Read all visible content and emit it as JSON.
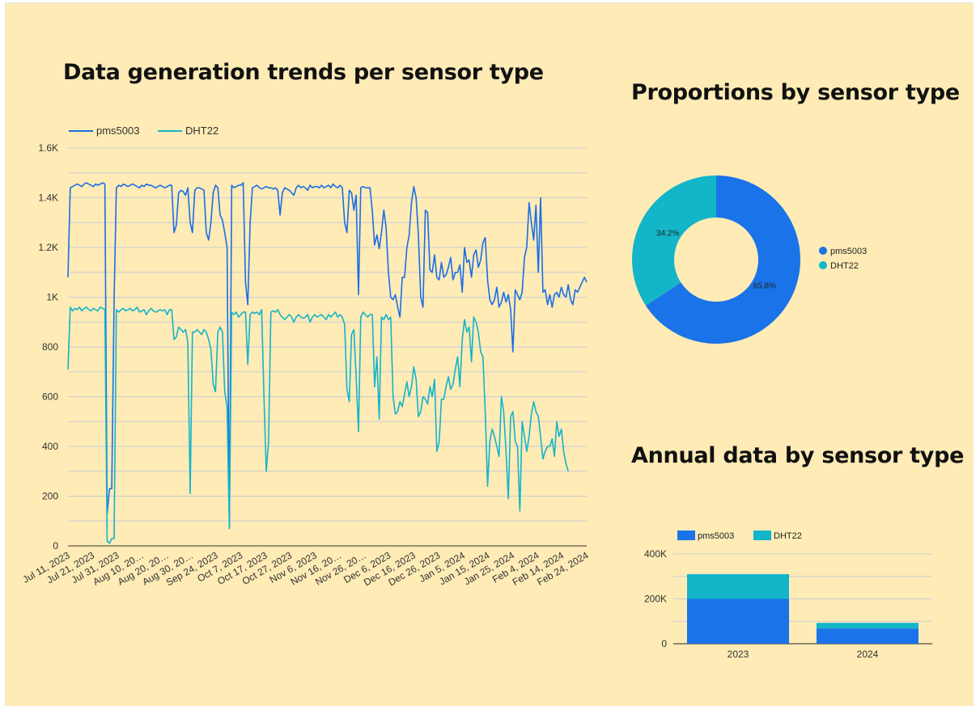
{
  "charts": {
    "trend": {
      "title": "Data generation trends per sensor type"
    },
    "proportion": {
      "title": "Proportions by sensor type"
    },
    "annual": {
      "title": "Annual data by sensor type"
    }
  },
  "chart_data": [
    {
      "type": "line",
      "title": "Data generation trends per sensor type",
      "legend_position": "top-left",
      "grid": true,
      "ylim": [
        0,
        1600
      ],
      "y_ticks": [
        {
          "value": 0,
          "label": "0"
        },
        {
          "value": 200,
          "label": "200"
        },
        {
          "value": 400,
          "label": "400"
        },
        {
          "value": 600,
          "label": "600"
        },
        {
          "value": 800,
          "label": "800"
        },
        {
          "value": 1000,
          "label": "1K"
        },
        {
          "value": 1200,
          "label": "1.2K"
        },
        {
          "value": 1400,
          "label": "1.4K"
        },
        {
          "value": 1600,
          "label": "1.6K"
        }
      ],
      "x_ticks": [
        {
          "index": 0,
          "label": "Jul 11, 2023"
        },
        {
          "index": 10,
          "label": "Jul 21, 2023"
        },
        {
          "index": 20,
          "label": "Jul 31, 2023"
        },
        {
          "index": 30,
          "label": "Aug 10, 20…"
        },
        {
          "index": 40,
          "label": "Aug 20, 20…"
        },
        {
          "index": 50,
          "label": "Aug 30, 20…"
        },
        {
          "index": 60,
          "label": "Sep 24, 2023"
        },
        {
          "index": 70,
          "label": "Oct 7, 2023"
        },
        {
          "index": 80,
          "label": "Oct 17, 2023"
        },
        {
          "index": 90,
          "label": "Oct 27, 2023"
        },
        {
          "index": 100,
          "label": "Nov 6, 2023"
        },
        {
          "index": 110,
          "label": "Nov 16, 20…"
        },
        {
          "index": 120,
          "label": "Nov 26, 20…"
        },
        {
          "index": 130,
          "label": "Dec 6, 2023"
        },
        {
          "index": 140,
          "label": "Dec 16, 2023"
        },
        {
          "index": 150,
          "label": "Dec 26, 2023"
        },
        {
          "index": 160,
          "label": "Jan 5, 2024"
        },
        {
          "index": 170,
          "label": "Jan 15, 2024"
        },
        {
          "index": 180,
          "label": "Jan 25, 2024"
        },
        {
          "index": 190,
          "label": "Feb 4, 2024"
        },
        {
          "index": 200,
          "label": "Feb 14, 2024"
        },
        {
          "index": 210,
          "label": "Feb 24, 2024"
        }
      ],
      "series": [
        {
          "name": "pms5003",
          "color": "#1a6ee6",
          "values": [
            1080,
            1440,
            1445,
            1450,
            1455,
            1450,
            1445,
            1455,
            1460,
            1455,
            1450,
            1445,
            1455,
            1450,
            1455,
            1460,
            1455,
            130,
            230,
            230,
            990,
            1440,
            1450,
            1445,
            1455,
            1450,
            1445,
            1450,
            1455,
            1450,
            1445,
            1440,
            1450,
            1445,
            1455,
            1450,
            1450,
            1445,
            1440,
            1445,
            1450,
            1445,
            1440,
            1445,
            1450,
            1450,
            1260,
            1290,
            1420,
            1430,
            1425,
            1410,
            1440,
            1300,
            1260,
            1430,
            1440,
            1440,
            1435,
            1430,
            1260,
            1230,
            1300,
            1420,
            1450,
            1440,
            1330,
            1310,
            1260,
            1200,
            70,
            1450,
            1440,
            1445,
            1450,
            1450,
            1460,
            1060,
            970,
            1300,
            1440,
            1445,
            1450,
            1440,
            1435,
            1440,
            1445,
            1440,
            1440,
            1435,
            1440,
            1430,
            1330,
            1420,
            1440,
            1435,
            1430,
            1420,
            1410,
            1440,
            1450,
            1440,
            1445,
            1440,
            1430,
            1450,
            1440,
            1445,
            1445,
            1440,
            1450,
            1440,
            1445,
            1450,
            1440,
            1455,
            1445,
            1440,
            1450,
            1440,
            1300,
            1260,
            1430,
            1420,
            1350,
            1410,
            1010,
            1440,
            1445,
            1440,
            1440,
            1440,
            1345,
            1210,
            1250,
            1195,
            1260,
            1350,
            1280,
            1100,
            1000,
            990,
            1010,
            960,
            920,
            1080,
            1080,
            1200,
            1250,
            1380,
            1445,
            1400,
            1250,
            1000,
            960,
            1350,
            1340,
            1110,
            1100,
            1170,
            1080,
            1070,
            1140,
            1080,
            1090,
            1120,
            1160,
            1070,
            1100,
            1100,
            1130,
            1020,
            1200,
            1140,
            1150,
            1080,
            1170,
            1190,
            1120,
            1150,
            1220,
            1240,
            1070,
            990,
            970,
            990,
            1040,
            960,
            980,
            1020,
            980,
            1010,
            950,
            780,
            1030,
            1010,
            990,
            1020,
            1160,
            1200,
            1380,
            1300,
            1230,
            1370,
            1100,
            1400
          ],
          "values2": [
            1020,
            1030,
            970,
            1010,
            960,
            1010,
            1020,
            1000,
            1040,
            1010,
            1000,
            1050,
            990,
            970,
            1030,
            1020,
            1040,
            1060,
            1080,
            1060
          ]
        },
        {
          "name": "DHT22",
          "color": "#14b4c8",
          "values": [
            710,
            960,
            945,
            955,
            950,
            960,
            945,
            955,
            960,
            950,
            945,
            955,
            950,
            945,
            960,
            955,
            950,
            20,
            10,
            30,
            30,
            950,
            940,
            950,
            955,
            945,
            950,
            955,
            945,
            950,
            960,
            940,
            945,
            950,
            930,
            945,
            955,
            945,
            940,
            945,
            950,
            945,
            950,
            930,
            950,
            950,
            830,
            840,
            880,
            870,
            860,
            870,
            820,
            210,
            860,
            860,
            870,
            860,
            850,
            870,
            860,
            830,
            790,
            650,
            620,
            860,
            880,
            860,
            620,
            560,
            70,
            940,
            930,
            940,
            920,
            930,
            940,
            940,
            730,
            930,
            940,
            935,
            940,
            930,
            950,
            600,
            300,
            420,
            940,
            945,
            940,
            950,
            930,
            920,
            910,
            920,
            930,
            920,
            900,
            920,
            930,
            920,
            915,
            920,
            930,
            900,
            920,
            930,
            920,
            925,
            930,
            920,
            910,
            930,
            920,
            930,
            940,
            920,
            930,
            920,
            890,
            630,
            580,
            850,
            870,
            680,
            460,
            920,
            940,
            930,
            920,
            930,
            930,
            640,
            760,
            510,
            920,
            910,
            930,
            910,
            920,
            600,
            530,
            540,
            580,
            560,
            610,
            660,
            600,
            640,
            720,
            670,
            520,
            540,
            600,
            590,
            570,
            640,
            600,
            670,
            380,
            420,
            590,
            590,
            640,
            680,
            630,
            650,
            710,
            760,
            640,
            830,
            910,
            860,
            880,
            740,
            920,
            900,
            860,
            780,
            760,
            540,
            240,
            420,
            470,
            440,
            400,
            360,
            600,
            540,
            380,
            190,
            520,
            540,
            420,
            400,
            140,
            500,
            440,
            380,
            440,
            530,
            580,
            540,
            520,
            440,
            350,
            380,
            400,
            400,
            430,
            360,
            500,
            440,
            470,
            380,
            330,
            300
          ],
          "values2": []
        }
      ]
    },
    {
      "type": "pie",
      "title": "Proportions by sensor type",
      "donut": true,
      "legend_position": "right",
      "slices": [
        {
          "name": "pms5003",
          "value": 65.8,
          "label": "65.8%",
          "color": "#1a73e8"
        },
        {
          "name": "DHT22",
          "value": 34.2,
          "label": "34.2%",
          "color": "#13b5c9"
        }
      ]
    },
    {
      "type": "bar",
      "stacked": true,
      "title": "Annual data by sensor type",
      "legend_position": "top-left",
      "grid": true,
      "categories": [
        "2023",
        "2024"
      ],
      "ylim": [
        0,
        400000
      ],
      "y_ticks": [
        {
          "value": 0,
          "label": "0"
        },
        {
          "value": 200000,
          "label": "200K"
        },
        {
          "value": 400000,
          "label": "400K"
        }
      ],
      "series": [
        {
          "name": "pms5003",
          "color": "#1a73e8",
          "values": [
            200000,
            68000
          ]
        },
        {
          "name": "DHT22",
          "color": "#13b5c9",
          "values": [
            110000,
            25000
          ]
        }
      ]
    }
  ]
}
